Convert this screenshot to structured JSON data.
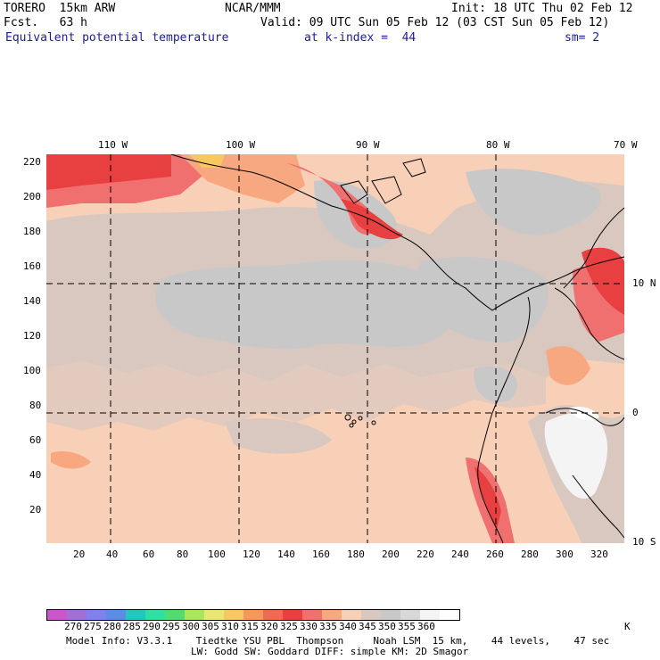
{
  "header": {
    "model": "TORERO  15km ARW",
    "org": "NCAR/MMM",
    "init": "Init: 18 UTC Thu 02 Feb 12",
    "fcst": "Fcst.   63 h",
    "valid": "Valid: 09 UTC Sun 05 Feb 12 (03 CST Sun 05 Feb 12)",
    "field": "Equivalent potential temperature",
    "level": "at k-index =  44",
    "smooth": "sm= 2"
  },
  "top_ticks": [
    "110 W",
    "100 W",
    "90 W",
    "80 W",
    "70 W"
  ],
  "right_ticks": [
    "10 N",
    "0",
    "10 S"
  ],
  "left_ticks": [
    "220",
    "200",
    "180",
    "160",
    "140",
    "120",
    "100",
    "80",
    "60",
    "40",
    "20"
  ],
  "bottom_ticks": [
    "20",
    "40",
    "60",
    "80",
    "100",
    "120",
    "140",
    "160",
    "180",
    "200",
    "220",
    "240",
    "260",
    "280",
    "300",
    "320"
  ],
  "colorbar": {
    "colors": [
      "#cc55cc",
      "#a070d8",
      "#8080f0",
      "#5a8ce8",
      "#20c8c0",
      "#30e0a0",
      "#50dc70",
      "#a8e858",
      "#e8e870",
      "#f8c860",
      "#f89858",
      "#f06a50",
      "#e84040",
      "#f07070",
      "#f8a880",
      "#f8d0b8",
      "#d8c8c0",
      "#c8c8c8",
      "#d8d8d8",
      "#f4f4f4",
      "#ffffff"
    ],
    "labels": [
      "270",
      "275",
      "280",
      "285",
      "290",
      "295",
      "300",
      "305",
      "310",
      "315",
      "320",
      "325",
      "330",
      "335",
      "340",
      "345",
      "350",
      "355",
      "360"
    ],
    "unit": "K"
  },
  "footer": {
    "line1": "Model Info: V3.3.1    Tiedtke YSU PBL  Thompson     Noah LSM  15 km,    44 levels,    47 sec",
    "line2": "LW: Godd SW: Goddard DIFF: simple KM: 2D Smagor"
  }
}
